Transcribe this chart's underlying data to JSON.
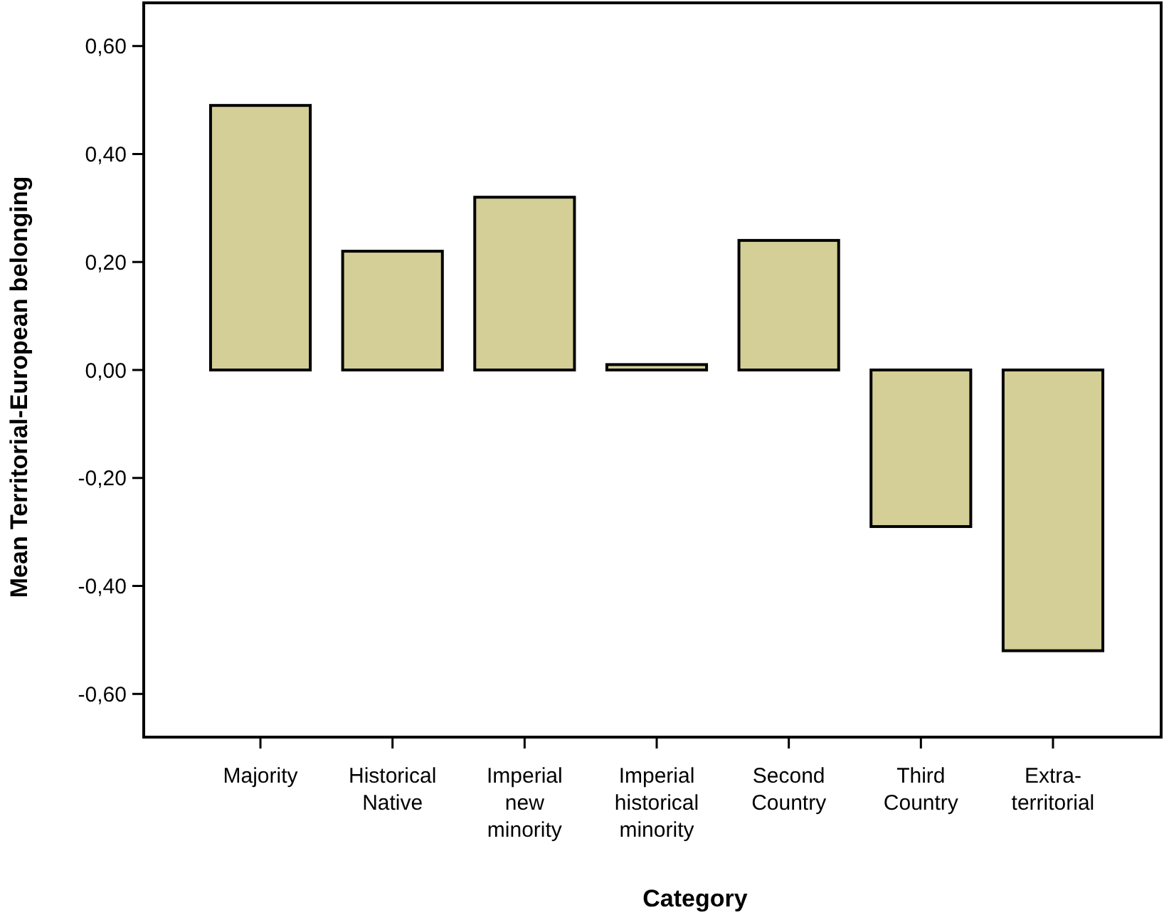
{
  "chart_data": {
    "type": "bar",
    "xlabel": "Category",
    "ylabel": "Mean Territorial-European belonging",
    "categories": [
      "Majority",
      "Historical Native",
      "Imperial new minority",
      "Imperial historical minority",
      "Second Country",
      "Third Country",
      "Extra-territorial"
    ],
    "values": [
      0.49,
      0.22,
      0.32,
      0.01,
      0.24,
      -0.29,
      -0.52
    ],
    "color": "#d4ce97",
    "ylim": [
      -0.68,
      0.68
    ],
    "yticks": [
      {
        "value": -0.6,
        "label": "-0,60"
      },
      {
        "value": -0.4,
        "label": "-0,40"
      },
      {
        "value": -0.2,
        "label": "-0,20"
      },
      {
        "value": 0,
        "label": "0,00"
      },
      {
        "value": 0.2,
        "label": "0,20"
      },
      {
        "value": 0.4,
        "label": "0,40"
      },
      {
        "value": 0.6,
        "label": "0,60"
      }
    ],
    "grid": false
  }
}
